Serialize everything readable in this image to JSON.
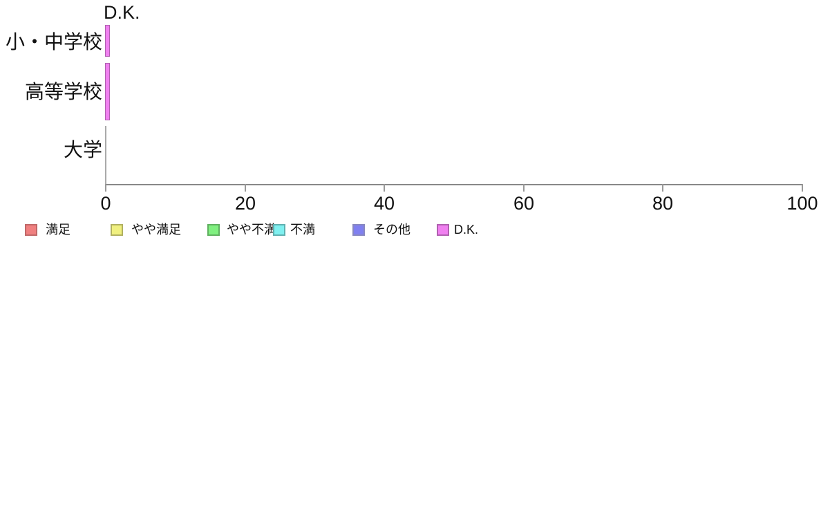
{
  "chart_data": {
    "type": "bar",
    "orientation": "horizontal",
    "stacked": true,
    "categories": [
      "小・中学校",
      "高等学校",
      "大学"
    ],
    "series": [
      {
        "name": "満足",
        "fill": "#F08080",
        "border": "#C06868",
        "values": [
          0,
          0,
          0
        ]
      },
      {
        "name": "やや満足",
        "fill": "#F0F080",
        "border": "#B0B060",
        "values": [
          0,
          0,
          0
        ]
      },
      {
        "name": "やや不満",
        "fill": "#80F080",
        "border": "#60B060",
        "values": [
          0,
          0,
          0
        ]
      },
      {
        "name": "不満",
        "fill": "#80F0F0",
        "border": "#60B0B0",
        "values": [
          0,
          0,
          0
        ]
      },
      {
        "name": "その他",
        "fill": "#8080F0",
        "border": "#8888C0",
        "values": [
          0,
          0,
          0
        ]
      },
      {
        "name": "D.K.",
        "fill": "#F080F0",
        "border": "#B060B0",
        "values": [
          0.5,
          0.5,
          0
        ]
      }
    ],
    "annotation": "D.K.",
    "xlim": [
      0,
      100
    ],
    "xticks": [
      0,
      20,
      40,
      60,
      80,
      100
    ],
    "legend_position": "bottom",
    "axis_color": "#888888",
    "tick_color": "#999999",
    "zero_line_color": "#AAAAAA",
    "text_color": "#111111"
  }
}
